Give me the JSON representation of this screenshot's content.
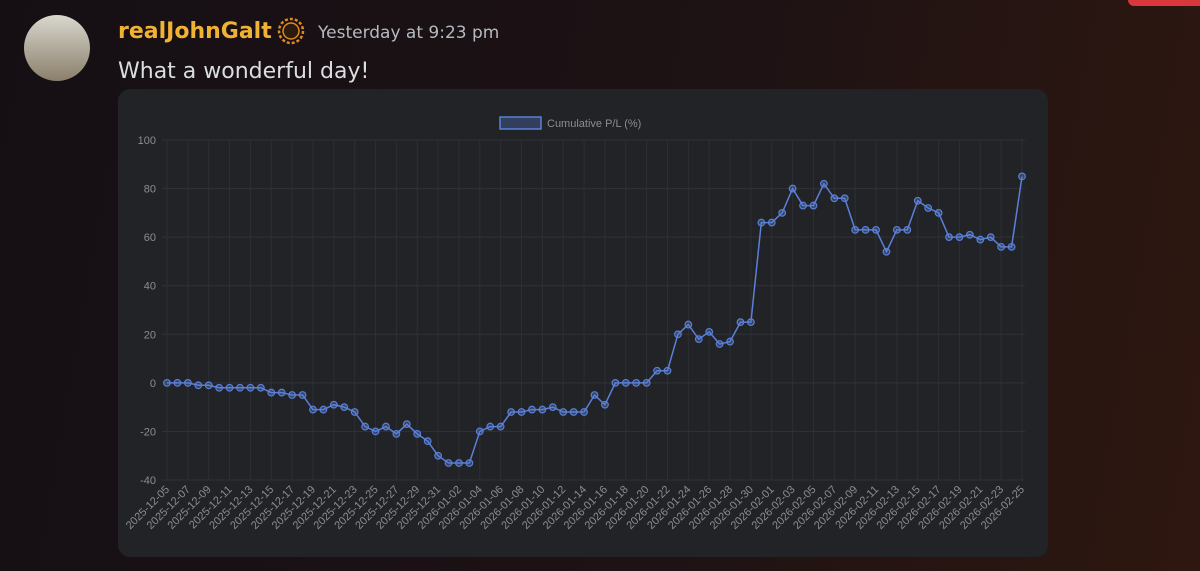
{
  "message": {
    "author": "realJohnGalt",
    "timestamp": "Yesterday at 9:23 pm",
    "content": "What a wonderful day!"
  },
  "chart_data": {
    "type": "line",
    "categories": [
      "2025-12-05",
      null,
      "2025-12-07",
      null,
      "2025-12-09",
      null,
      "2025-12-11",
      null,
      "2025-12-13",
      null,
      "2025-12-15",
      null,
      "2025-12-17",
      null,
      "2025-12-19",
      null,
      "2025-12-21",
      null,
      "2025-12-23",
      null,
      "2025-12-25",
      null,
      "2025-12-27",
      null,
      "2025-12-29",
      null,
      "2025-12-31",
      null,
      "2026-01-02",
      null,
      "2026-01-04",
      null,
      "2026-01-06",
      null,
      "2026-01-08",
      null,
      "2026-01-10",
      null,
      "2026-01-12",
      null,
      "2026-01-14",
      null,
      "2026-01-16",
      null,
      "2026-01-18",
      null,
      "2026-01-20",
      null,
      "2026-01-22",
      null,
      "2026-01-24",
      null,
      "2026-01-26",
      null,
      "2026-01-28",
      null,
      "2026-01-30",
      null,
      "2026-02-01",
      null,
      "2026-02-03",
      null,
      "2026-02-05",
      null,
      "2026-02-07",
      null,
      "2026-02-09",
      null,
      "2026-02-11",
      null,
      "2026-02-13",
      null,
      "2026-02-15",
      null,
      "2026-02-17",
      null,
      "2026-02-19",
      null,
      "2026-02-21",
      null,
      "2026-02-23",
      null,
      "2026-02-25"
    ],
    "series": [
      {
        "name": "Cumulative P/L (%)",
        "color": "#5b80d8",
        "values": [
          0,
          0,
          0,
          -1,
          -1,
          -2,
          -2,
          -2,
          -2,
          -2,
          -4,
          -4,
          -5,
          -5,
          -11,
          -11,
          -9,
          -10,
          -12,
          -18,
          -20,
          -18,
          -21,
          -17,
          -21,
          -24,
          -30,
          -33,
          -33,
          -33,
          -20,
          -18,
          -18,
          -12,
          -12,
          -11,
          -11,
          -10,
          -12,
          -12,
          -12,
          -5,
          -9,
          0,
          0,
          0,
          0,
          5,
          5,
          20,
          24,
          18,
          21,
          16,
          17,
          25,
          25,
          66,
          66,
          70,
          80,
          73,
          73,
          82,
          76,
          76,
          63,
          63,
          63,
          54,
          63,
          63,
          75,
          72,
          70,
          60,
          60,
          61,
          59,
          60,
          56,
          56,
          85
        ]
      }
    ],
    "ylim": [
      -40,
      100
    ],
    "yticks": [
      -40,
      -20,
      0,
      20,
      40,
      60,
      80,
      100
    ],
    "grid": true,
    "legend": "top"
  }
}
